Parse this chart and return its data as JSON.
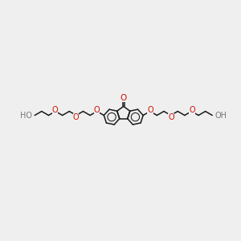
{
  "bg_color": "#efefef",
  "bond_color": "#1a1a1a",
  "oxygen_color": "#cc1100",
  "ho_gray": "#777777",
  "figsize": [
    3.0,
    3.0
  ],
  "dpi": 100,
  "BL": 0.13,
  "xlim": [
    -1.52,
    1.52
  ],
  "ylim": [
    -0.72,
    0.72
  ]
}
